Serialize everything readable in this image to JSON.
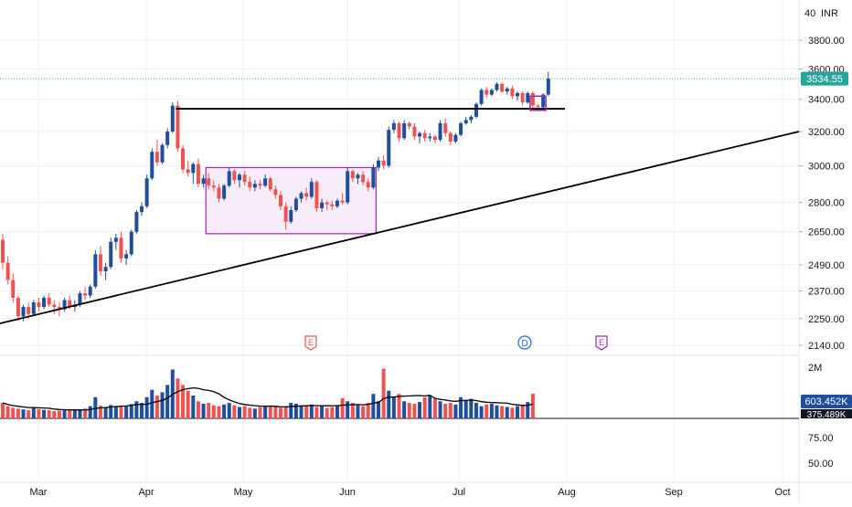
{
  "colors": {
    "up": "#1f4e9e",
    "down": "#ef5350",
    "trendline": "#000000",
    "box": "#9c27b0",
    "box_fill": "#f3e5f5",
    "price_badge": "#26a69a",
    "grid": "#e0e3eb",
    "axis_text": "#131722",
    "earnings": "#ef5350",
    "dividend": "#2962ff",
    "ma": "#000000"
  },
  "price_axis": {
    "currency": "INR",
    "top_tick": "40",
    "ticks": [
      "3800.00",
      "3600.00",
      "3400.00",
      "3200.00",
      "3000.00",
      "2800.00",
      "2650.00",
      "2490.00",
      "2370.00",
      "2250.00",
      "2140.00"
    ]
  },
  "volume_axis": {
    "max_label": "2M",
    "last_volume": "603.452K",
    "ma_volume": "375.489K"
  },
  "lower_axis": {
    "ticks": [
      "75.00",
      "50.00"
    ]
  },
  "time_axis": {
    "labels": [
      "Mar",
      "Apr",
      "May",
      "Jun",
      "Jul",
      "Aug",
      "Sep",
      "Oct"
    ]
  },
  "last_price": "3534.55",
  "events": [
    {
      "type": "earnings",
      "label": "E"
    },
    {
      "type": "dividend",
      "label": "D"
    },
    {
      "type": "earnings",
      "label": "E"
    }
  ],
  "chart_data": {
    "type": "candlestick",
    "interval": "daily",
    "x_range": [
      "Mar",
      "Oct"
    ],
    "ylim": [
      2140,
      3850
    ],
    "scale": "log",
    "candles": [
      [
        "Feb 26",
        2610,
        2640,
        2470,
        2500
      ],
      [
        "Feb 27",
        2500,
        2530,
        2400,
        2420
      ],
      [
        "Feb 28",
        2420,
        2450,
        2320,
        2340
      ],
      [
        "Feb 29",
        2340,
        2350,
        2240,
        2260
      ],
      [
        "Mar 1",
        2260,
        2310,
        2240,
        2300
      ],
      [
        "Mar 4",
        2300,
        2320,
        2250,
        2270
      ],
      [
        "Mar 5",
        2270,
        2330,
        2260,
        2320
      ],
      [
        "Mar 6",
        2320,
        2340,
        2280,
        2300
      ],
      [
        "Mar 7",
        2300,
        2350,
        2290,
        2340
      ],
      [
        "Mar 11",
        2340,
        2360,
        2300,
        2310
      ],
      [
        "Mar 12",
        2310,
        2330,
        2270,
        2300
      ],
      [
        "Mar 13",
        2300,
        2320,
        2260,
        2290
      ],
      [
        "Mar 14",
        2290,
        2340,
        2280,
        2330
      ],
      [
        "Mar 15",
        2330,
        2350,
        2290,
        2300
      ],
      [
        "Mar 18",
        2300,
        2330,
        2280,
        2310
      ],
      [
        "Mar 19",
        2310,
        2370,
        2300,
        2360
      ],
      [
        "Mar 20",
        2360,
        2390,
        2330,
        2350
      ],
      [
        "Mar 21",
        2350,
        2400,
        2340,
        2390
      ],
      [
        "Mar 22",
        2390,
        2560,
        2380,
        2540
      ],
      [
        "Mar 26",
        2540,
        2580,
        2440,
        2460
      ],
      [
        "Mar 27",
        2460,
        2500,
        2420,
        2480
      ],
      [
        "Mar 28",
        2480,
        2620,
        2470,
        2600
      ],
      [
        "Apr 1",
        2600,
        2640,
        2560,
        2620
      ],
      [
        "Apr 2",
        2620,
        2650,
        2500,
        2520
      ],
      [
        "Apr 3",
        2520,
        2560,
        2490,
        2540
      ],
      [
        "Apr 4",
        2540,
        2660,
        2530,
        2650
      ],
      [
        "Apr 5",
        2650,
        2760,
        2640,
        2750
      ],
      [
        "Apr 8",
        2750,
        2800,
        2730,
        2780
      ],
      [
        "Apr 9",
        2780,
        2950,
        2770,
        2930
      ],
      [
        "Apr 10",
        2930,
        3100,
        2920,
        3080
      ],
      [
        "Apr 12",
        3080,
        3150,
        3000,
        3020
      ],
      [
        "Apr 15",
        3020,
        3130,
        3010,
        3120
      ],
      [
        "Apr 16",
        3120,
        3220,
        3100,
        3200
      ],
      [
        "Apr 18",
        3200,
        3380,
        3190,
        3360
      ],
      [
        "Apr 19",
        3360,
        3390,
        3080,
        3100
      ],
      [
        "Apr 22",
        3100,
        3120,
        2960,
        2980
      ],
      [
        "Apr 23",
        2980,
        3030,
        2940,
        2960
      ],
      [
        "Apr 24",
        2960,
        3020,
        2900,
        3010
      ],
      [
        "Apr 25",
        3010,
        3040,
        2880,
        2900
      ],
      [
        "Apr 26",
        2900,
        2950,
        2880,
        2930
      ],
      [
        "Apr 29",
        2930,
        2960,
        2870,
        2890
      ],
      [
        "Apr 30",
        2890,
        2920,
        2860,
        2880
      ],
      [
        "May 2",
        2880,
        2900,
        2800,
        2820
      ],
      [
        "May 3",
        2820,
        2900,
        2810,
        2890
      ],
      [
        "May 6",
        2890,
        2990,
        2880,
        2970
      ],
      [
        "May 7",
        2970,
        2980,
        2900,
        2920
      ],
      [
        "May 8",
        2920,
        2960,
        2880,
        2950
      ],
      [
        "May 9",
        2950,
        2970,
        2890,
        2910
      ],
      [
        "May 10",
        2910,
        2940,
        2860,
        2880
      ],
      [
        "May 13",
        2880,
        2920,
        2860,
        2900
      ],
      [
        "May 14",
        2900,
        2920,
        2870,
        2890
      ],
      [
        "May 15",
        2890,
        2950,
        2880,
        2930
      ],
      [
        "May 16",
        2930,
        2940,
        2860,
        2870
      ],
      [
        "May 17",
        2870,
        2890,
        2820,
        2840
      ],
      [
        "May 21",
        2840,
        2860,
        2760,
        2780
      ],
      [
        "May 22",
        2780,
        2800,
        2660,
        2700
      ],
      [
        "May 23",
        2700,
        2780,
        2690,
        2760
      ],
      [
        "May 24",
        2760,
        2830,
        2750,
        2820
      ],
      [
        "May 27",
        2820,
        2860,
        2800,
        2850
      ],
      [
        "May 28",
        2850,
        2880,
        2810,
        2830
      ],
      [
        "May 29",
        2830,
        2930,
        2820,
        2910
      ],
      [
        "May 30",
        2910,
        2920,
        2750,
        2770
      ],
      [
        "May 31",
        2770,
        2820,
        2750,
        2800
      ],
      [
        "Jun 3",
        2800,
        2810,
        2760,
        2790
      ],
      [
        "Jun 4",
        2790,
        2810,
        2760,
        2780
      ],
      [
        "Jun 5",
        2780,
        2820,
        2770,
        2810
      ],
      [
        "Jun 6",
        2810,
        2850,
        2790,
        2800
      ],
      [
        "Jun 7",
        2800,
        2990,
        2790,
        2970
      ],
      [
        "Jun 10",
        2970,
        2980,
        2910,
        2930
      ],
      [
        "Jun 11",
        2930,
        2960,
        2900,
        2950
      ],
      [
        "Jun 12",
        2950,
        2970,
        2890,
        2910
      ],
      [
        "Jun 13",
        2910,
        2930,
        2860,
        2880
      ],
      [
        "Jun 14",
        2880,
        3010,
        2870,
        2990
      ],
      [
        "Jun 18",
        2990,
        3050,
        2970,
        3030
      ],
      [
        "Jun 19",
        3030,
        3060,
        2980,
        3000
      ],
      [
        "Jun 20",
        3000,
        3230,
        2990,
        3210
      ],
      [
        "Jun 21",
        3210,
        3270,
        3190,
        3250
      ],
      [
        "Jun 24",
        3250,
        3260,
        3140,
        3160
      ],
      [
        "Jun 25",
        3160,
        3270,
        3150,
        3250
      ],
      [
        "Jun 26",
        3250,
        3260,
        3210,
        3230
      ],
      [
        "Jun 27",
        3230,
        3250,
        3150,
        3170
      ],
      [
        "Jun 28",
        3170,
        3200,
        3130,
        3190
      ],
      [
        "Jul 1",
        3190,
        3210,
        3140,
        3160
      ],
      [
        "Jul 2",
        3160,
        3190,
        3140,
        3170
      ],
      [
        "Jul 3",
        3170,
        3180,
        3130,
        3150
      ],
      [
        "Jul 4",
        3150,
        3270,
        3140,
        3250
      ],
      [
        "Jul 5",
        3250,
        3280,
        3170,
        3190
      ],
      [
        "Jul 8",
        3190,
        3200,
        3120,
        3140
      ],
      [
        "Jul 9",
        3140,
        3190,
        3130,
        3180
      ],
      [
        "Jul 10",
        3180,
        3260,
        3170,
        3250
      ],
      [
        "Jul 11",
        3250,
        3290,
        3240,
        3270
      ],
      [
        "Jul 12",
        3270,
        3300,
        3250,
        3290
      ],
      [
        "Jul 15",
        3290,
        3380,
        3280,
        3370
      ],
      [
        "Jul 16",
        3370,
        3470,
        3360,
        3460
      ],
      [
        "Jul 18",
        3460,
        3480,
        3410,
        3430
      ],
      [
        "Jul 19",
        3430,
        3470,
        3420,
        3460
      ],
      [
        "Jul 22",
        3460,
        3510,
        3450,
        3500
      ],
      [
        "Jul 23",
        3500,
        3510,
        3440,
        3450
      ],
      [
        "Jul 24",
        3450,
        3480,
        3430,
        3470
      ],
      [
        "Jul 25",
        3470,
        3490,
        3400,
        3420
      ],
      [
        "Jul 26",
        3420,
        3450,
        3390,
        3440
      ],
      [
        "Jul 29",
        3440,
        3450,
        3360,
        3380
      ],
      [
        "Jul 30",
        3380,
        3450,
        3370,
        3440
      ],
      [
        "Jul 31",
        3440,
        3450,
        3340,
        3360
      ],
      [
        "Aug 1",
        3360,
        3370,
        3330,
        3350
      ],
      [
        "Aug 2",
        3350,
        3440,
        3340,
        3430
      ],
      [
        "Aug 5",
        3430,
        3580,
        3420,
        3534.55
      ]
    ],
    "volume": [
      380,
      300,
      260,
      240,
      220,
      200,
      250,
      230,
      210,
      200,
      180,
      190,
      200,
      210,
      220,
      200,
      240,
      300,
      520,
      310,
      280,
      330,
      300,
      280,
      290,
      350,
      420,
      380,
      520,
      700,
      560,
      640,
      820,
      1200,
      980,
      820,
      680,
      560,
      420,
      360,
      380,
      320,
      300,
      340,
      380,
      320,
      280,
      300,
      260,
      240,
      280,
      300,
      320,
      280,
      260,
      300,
      380,
      360,
      320,
      300,
      340,
      280,
      300,
      260,
      280,
      300,
      500,
      420,
      380,
      320,
      300,
      380,
      600,
      420,
      1220,
      680,
      520,
      600,
      420,
      380,
      360,
      400,
      520,
      560,
      480,
      420,
      360,
      380,
      340,
      520,
      440,
      480,
      380,
      300,
      340,
      360,
      320,
      300,
      280,
      260,
      300,
      340,
      400,
      603.452
    ],
    "annotations": {
      "resistance_line": {
        "price": 3340,
        "from": "Apr 19",
        "to": "Aug 5"
      },
      "trendline": {
        "from": [
          "Feb 26",
          2230
        ],
        "to": [
          "Oct",
          3200
        ]
      },
      "consolidation_box": {
        "from": "Apr 29",
        "to": "Jun 14",
        "top": 2990,
        "bottom": 2640
      },
      "small_box": {
        "from": "Jul 31",
        "to": "Aug 2",
        "top": 3420,
        "bottom": 3330
      }
    }
  }
}
